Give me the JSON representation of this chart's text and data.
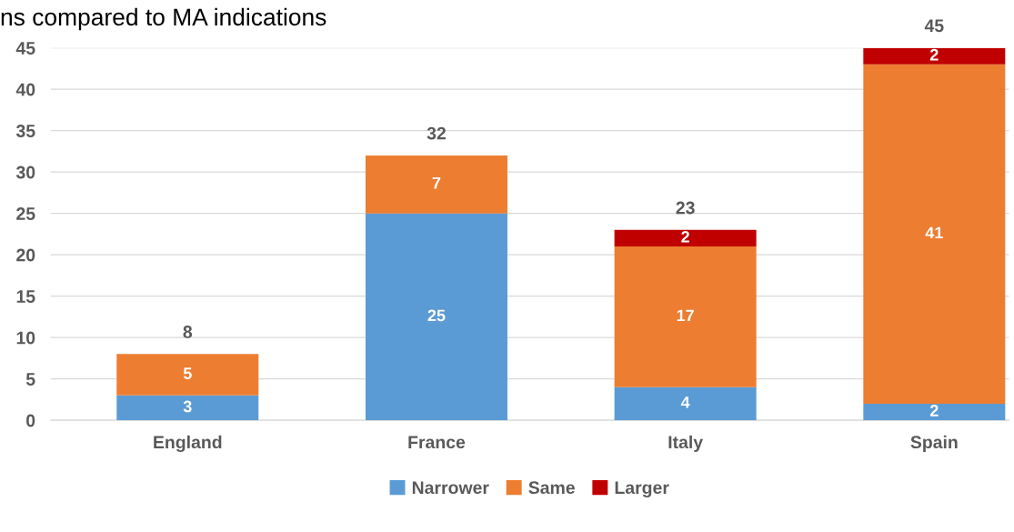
{
  "chart_data": {
    "type": "bar",
    "title": "ns compared to MA indications",
    "stacked": true,
    "categories": [
      "England",
      "France",
      "Italy",
      "Spain"
    ],
    "series": [
      {
        "name": "Narrower",
        "color": "#5b9bd5",
        "values": [
          3,
          25,
          4,
          2
        ]
      },
      {
        "name": "Same",
        "color": "#ed7d31",
        "values": [
          5,
          7,
          17,
          41
        ]
      },
      {
        "name": "Larger",
        "color": "#c00000",
        "values": [
          null,
          null,
          2,
          2
        ]
      }
    ],
    "totals": [
      "8",
      "32",
      "23",
      "45"
    ],
    "data_labels": true,
    "ylim": [
      0,
      45
    ],
    "yticks": [
      0,
      5,
      10,
      15,
      20,
      25,
      30,
      35,
      40,
      45
    ],
    "grid": "y",
    "legend": "bottom"
  }
}
